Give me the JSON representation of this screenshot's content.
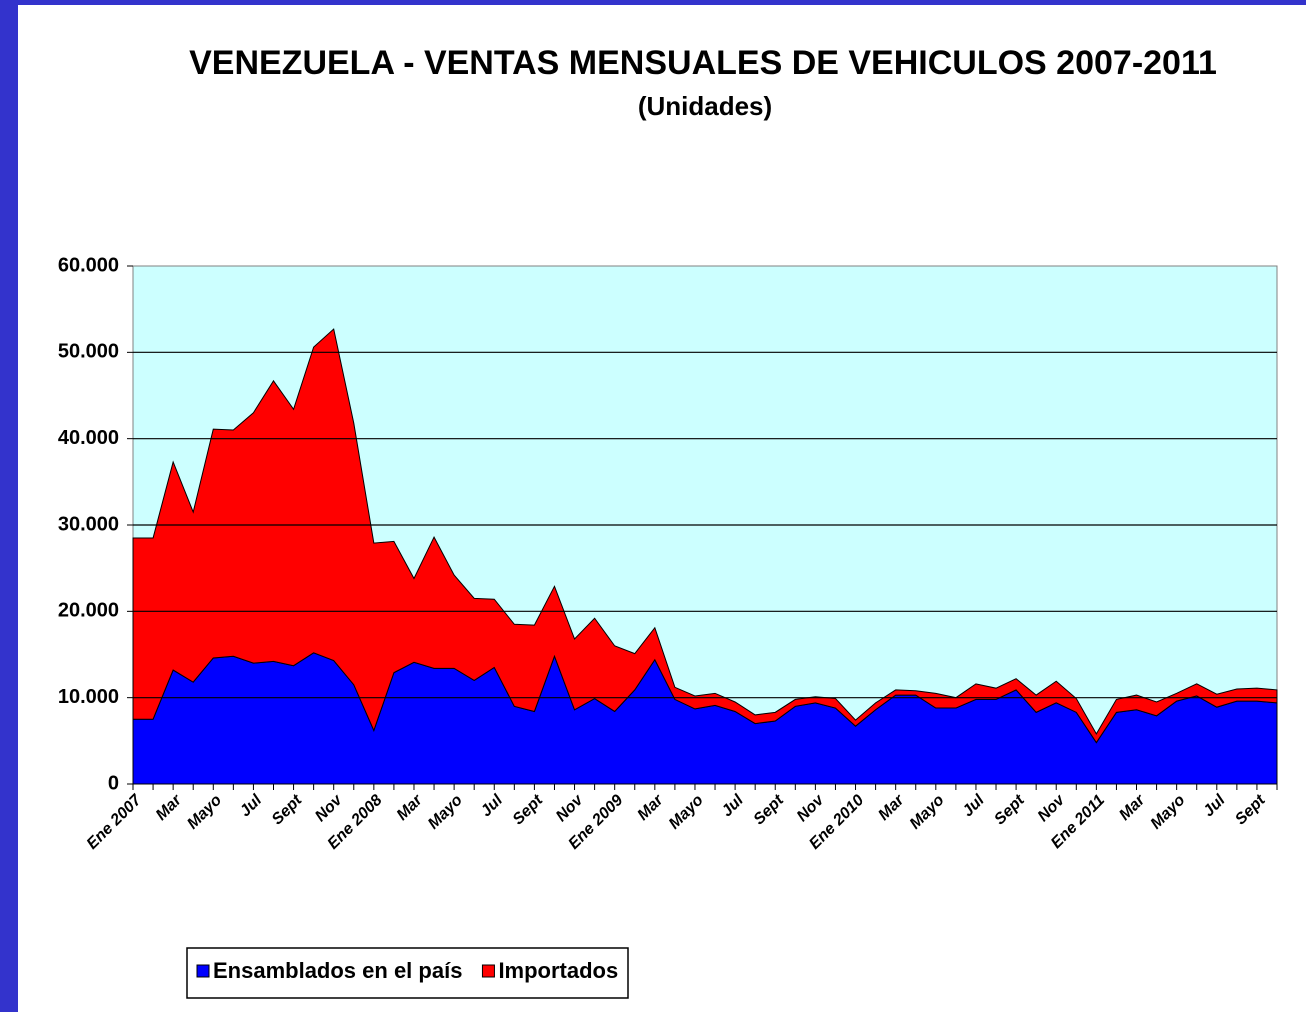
{
  "chart_data": {
    "type": "stacked_area",
    "title": "VENEZUELA - VENTAS MENSUALES DE VEHICULOS 2007-2011",
    "subtitle": "(Unidades)",
    "categories": [
      "Ene 2007",
      null,
      "Mar",
      null,
      "Mayo",
      null,
      "Jul",
      null,
      "Sept",
      null,
      "Nov",
      null,
      "Ene 2008",
      null,
      "Mar",
      null,
      "Mayo",
      null,
      "Jul",
      null,
      "Sept",
      null,
      "Nov",
      null,
      "Ene 2009",
      null,
      "Mar",
      null,
      "Mayo",
      null,
      "Jul",
      null,
      "Sept",
      null,
      "Nov",
      null,
      "Ene 2010",
      null,
      "Mar",
      null,
      "Mayo",
      null,
      "Jul",
      null,
      "Sept",
      null,
      "Nov",
      null,
      "Ene 2011",
      null,
      "Mar",
      null,
      "Mayo",
      null,
      "Jul",
      null,
      "Sept",
      null
    ],
    "series": [
      {
        "name": "Ensamblados en el país",
        "color": "#0000ff",
        "values": [
          7500,
          7500,
          13200,
          11800,
          14600,
          14800,
          14000,
          14200,
          13700,
          15200,
          14300,
          11500,
          6200,
          12900,
          14100,
          13400,
          13400,
          12000,
          13500,
          9000,
          8400,
          14800,
          8600,
          9900,
          8400,
          10900,
          14400,
          9800,
          8700,
          9100,
          8400,
          7000,
          7300,
          9000,
          9400,
          8800,
          6700,
          8600,
          10300,
          10300,
          8800,
          8800,
          9800,
          9800,
          10900,
          8300,
          9400,
          8300,
          4800,
          8300,
          8600,
          7900,
          9600,
          10200,
          8900,
          9600,
          9600,
          9400
        ]
      },
      {
        "name": "Importados",
        "color": "#ff0000",
        "values": [
          21000,
          21000,
          24100,
          19700,
          26500,
          26200,
          29000,
          32500,
          29700,
          35400,
          38400,
          30300,
          21700,
          15200,
          9700,
          15200,
          10800,
          9500,
          7900,
          9500,
          10000,
          8100,
          8200,
          9300,
          7600,
          4200,
          3700,
          1400,
          1500,
          1400,
          1100,
          1000,
          1000,
          800,
          700,
          1100,
          700,
          800,
          600,
          500,
          1700,
          1200,
          1800,
          1300,
          1300,
          2000,
          2500,
          1600,
          1000,
          1500,
          1700,
          1600,
          900,
          1400,
          1500,
          1400,
          1500,
          1500
        ]
      }
    ],
    "ylim": [
      0,
      60000
    ],
    "yticks": [
      0,
      {
        "value": 10000,
        "label": "10.000"
      },
      {
        "value": 20000,
        "label": "20.000"
      },
      {
        "value": 30000,
        "label": "30.000"
      },
      {
        "value": 40000,
        "label": "40.000"
      },
      {
        "value": 50000,
        "label": "50.000"
      },
      {
        "value": 60000,
        "label": "60.000"
      }
    ],
    "grid": true,
    "plot_background": "#ccffff",
    "legend": "bottom-left"
  }
}
